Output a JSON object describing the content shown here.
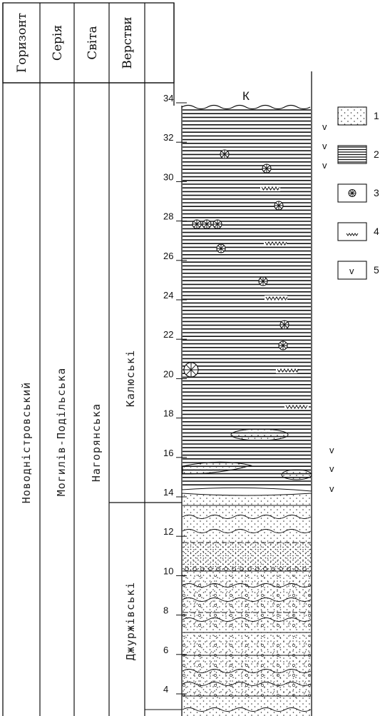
{
  "header": {
    "columns": [
      {
        "key": "horizon",
        "label": "Горизонт"
      },
      {
        "key": "series",
        "label": "Серія"
      },
      {
        "key": "suite",
        "label": "Світа"
      },
      {
        "key": "layers",
        "label": "Верстви"
      }
    ]
  },
  "units": {
    "horizon": "Новодністровський",
    "series": "Могилів-Подільська",
    "suite": "Нагорянська",
    "layer_upper": "Калюські",
    "layer_lower": "Джуржівські"
  },
  "column": {
    "top_label": "К",
    "depth_ticks": [
      "34",
      "32",
      "30",
      "28",
      "26",
      "24",
      "22",
      "20",
      "18",
      "16",
      "14",
      "12",
      "10",
      "8",
      "6",
      "4"
    ]
  },
  "legend": {
    "items": [
      {
        "num": "1",
        "icon": "sandstone-dots-icon"
      },
      {
        "num": "2",
        "icon": "argillite-lines-icon"
      },
      {
        "num": "3",
        "icon": "fossil-star-icon"
      },
      {
        "num": "4",
        "icon": "ripple-marks-icon"
      },
      {
        "num": "5",
        "icon": "sampling-v-icon"
      }
    ]
  },
  "sample_marks": [
    "v",
    "v",
    "v",
    "v",
    "v",
    "v"
  ]
}
